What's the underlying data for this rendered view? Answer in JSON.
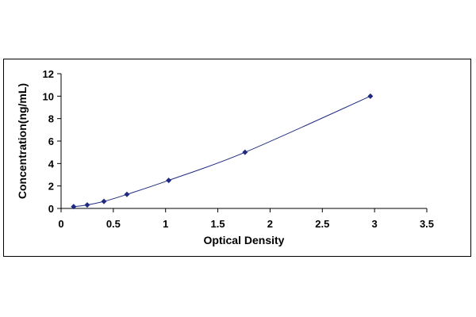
{
  "chart_data": {
    "type": "scatter",
    "title": "",
    "xlabel": "Optical Density",
    "ylabel": "Concentration(ng/mL)",
    "xlim": [
      0,
      3.5
    ],
    "ylim": [
      0,
      12
    ],
    "xticks": [
      0,
      0.5,
      1,
      1.5,
      2,
      2.5,
      3,
      3.5
    ],
    "xtick_labels": [
      "0",
      "0.5",
      "1",
      "1.5",
      "2",
      "2.5",
      "3",
      "3.5"
    ],
    "yticks": [
      0,
      2,
      4,
      6,
      8,
      10,
      12
    ],
    "ytick_labels": [
      "0",
      "2",
      "4",
      "6",
      "8",
      "10",
      "12"
    ],
    "grid": false,
    "legend": "none",
    "series": [
      {
        "x": [
          0.12,
          0.25,
          0.41,
          0.63,
          1.03,
          1.76,
          2.96
        ],
        "y": [
          0.156,
          0.312,
          0.625,
          1.25,
          2.5,
          5,
          10
        ],
        "marker": "diamond",
        "color": "#1f2a80",
        "line": "smooth"
      }
    ]
  }
}
